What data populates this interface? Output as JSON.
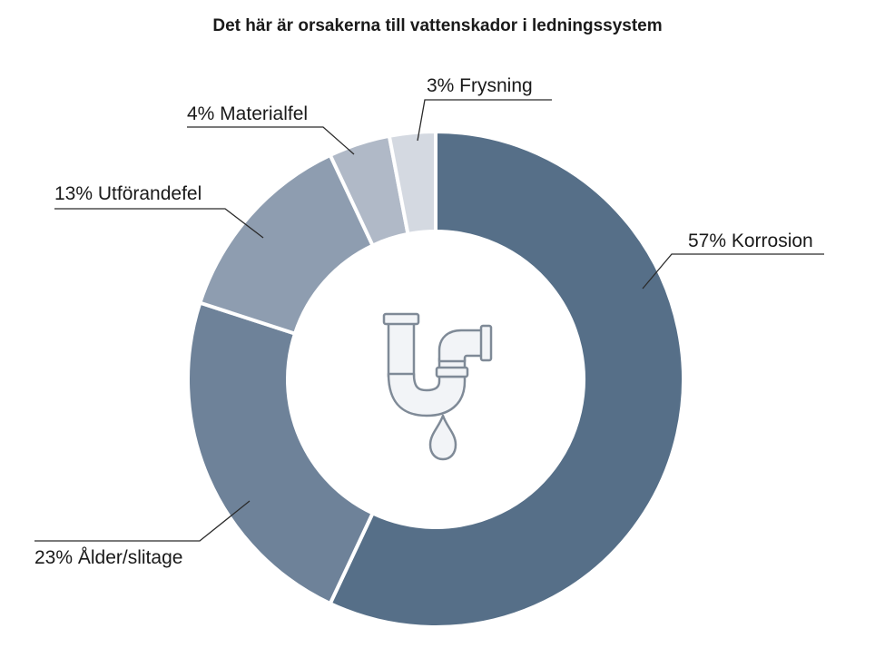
{
  "chart_data": {
    "type": "pie",
    "variant": "donut",
    "title": "Det här är orsakerna till vattenskador i ledningssystem",
    "slices": [
      {
        "label": "57% Korrosion",
        "value": 57,
        "color": "#566f88"
      },
      {
        "label": "23% Ålder/slitage",
        "value": 23,
        "color": "#6e8299"
      },
      {
        "label": "13% Utförandefel",
        "value": 13,
        "color": "#8e9db0"
      },
      {
        "label": "4% Materialfel",
        "value": 4,
        "color": "#b0b9c7"
      },
      {
        "label": "3% Frysning",
        "value": 3,
        "color": "#d4d9e1"
      }
    ],
    "center_icon": "dripping-pipe-icon",
    "legend": "none (labels beside slices)"
  }
}
